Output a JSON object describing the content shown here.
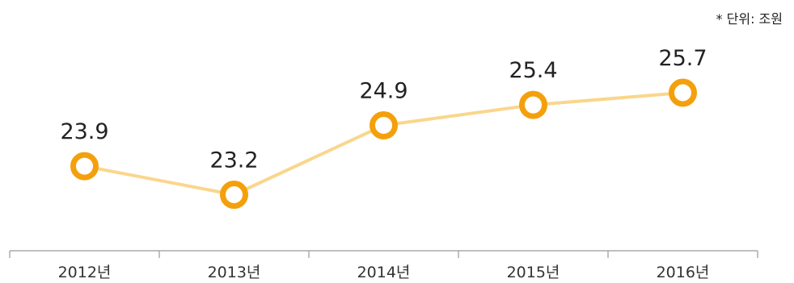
{
  "chart_data": {
    "type": "line",
    "unit_note": "* 단위: 조원",
    "categories": [
      "2012년",
      "2013년",
      "2014년",
      "2015년",
      "2016년"
    ],
    "series": [
      {
        "values": [
          23.9,
          23.2,
          24.9,
          25.4,
          25.7
        ]
      }
    ],
    "data_labels": [
      "23.9",
      "23.2",
      "24.9",
      "25.4",
      "25.7"
    ],
    "grid": false,
    "colors": {
      "line": "#fad68c",
      "marker": "#f4a00c",
      "marker_fill": "#ffffff",
      "axis": "#999999",
      "text": "#222222"
    }
  }
}
